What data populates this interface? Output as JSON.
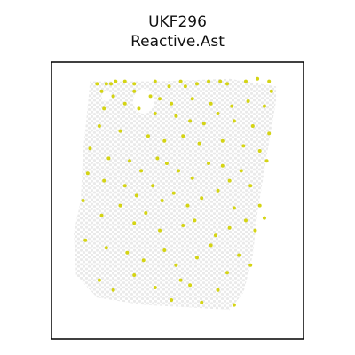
{
  "chart_data": {
    "type": "scatter",
    "title": "UKF296",
    "subtitle": "Reactive.Ast",
    "xlabel": "",
    "ylabel": "",
    "axes_ticks": false,
    "grid": false,
    "legend": "none",
    "colors": {
      "tissue": "#ebebeb",
      "highlight": "#d4d414",
      "frame": "#000000"
    },
    "tissue_outline": [
      [
        0.12,
        0.02
      ],
      [
        0.4,
        0.02
      ],
      [
        0.72,
        0.01
      ],
      [
        0.92,
        0.04
      ],
      [
        0.92,
        0.1
      ],
      [
        0.88,
        0.32
      ],
      [
        0.84,
        0.55
      ],
      [
        0.82,
        0.72
      ],
      [
        0.78,
        0.87
      ],
      [
        0.72,
        0.94
      ],
      [
        0.55,
        0.93
      ],
      [
        0.35,
        0.92
      ],
      [
        0.15,
        0.89
      ],
      [
        0.06,
        0.8
      ],
      [
        0.05,
        0.63
      ],
      [
        0.08,
        0.5
      ],
      [
        0.09,
        0.3
      ],
      [
        0.11,
        0.12
      ]
    ],
    "tissue_holes": [
      {
        "cx": 0.35,
        "cy": 0.1,
        "rx": 0.045,
        "ry": 0.05
      },
      {
        "cx": 0.19,
        "cy": 0.08,
        "rx": 0.02,
        "ry": 0.02
      }
    ],
    "highlight_points": [
      [
        0.15,
        0.03
      ],
      [
        0.19,
        0.03
      ],
      [
        0.21,
        0.03
      ],
      [
        0.23,
        0.02
      ],
      [
        0.27,
        0.02
      ],
      [
        0.31,
        0.03
      ],
      [
        0.4,
        0.02
      ],
      [
        0.46,
        0.04
      ],
      [
        0.51,
        0.02
      ],
      [
        0.53,
        0.04
      ],
      [
        0.58,
        0.03
      ],
      [
        0.63,
        0.02
      ],
      [
        0.68,
        0.02
      ],
      [
        0.71,
        0.03
      ],
      [
        0.79,
        0.02
      ],
      [
        0.84,
        0.01
      ],
      [
        0.89,
        0.02
      ],
      [
        0.9,
        0.06
      ],
      [
        0.17,
        0.06
      ],
      [
        0.22,
        0.08
      ],
      [
        0.31,
        0.06
      ],
      [
        0.38,
        0.08
      ],
      [
        0.42,
        0.09
      ],
      [
        0.47,
        0.11
      ],
      [
        0.56,
        0.09
      ],
      [
        0.64,
        0.11
      ],
      [
        0.73,
        0.12
      ],
      [
        0.8,
        0.1
      ],
      [
        0.87,
        0.12
      ],
      [
        0.18,
        0.13
      ],
      [
        0.27,
        0.11
      ],
      [
        0.33,
        0.13
      ],
      [
        0.4,
        0.15
      ],
      [
        0.49,
        0.16
      ],
      [
        0.55,
        0.18
      ],
      [
        0.61,
        0.19
      ],
      [
        0.67,
        0.15
      ],
      [
        0.74,
        0.18
      ],
      [
        0.82,
        0.2
      ],
      [
        0.89,
        0.23
      ],
      [
        0.16,
        0.2
      ],
      [
        0.25,
        0.22
      ],
      [
        0.37,
        0.24
      ],
      [
        0.44,
        0.26
      ],
      [
        0.52,
        0.24
      ],
      [
        0.59,
        0.27
      ],
      [
        0.69,
        0.26
      ],
      [
        0.78,
        0.28
      ],
      [
        0.85,
        0.3
      ],
      [
        0.12,
        0.29
      ],
      [
        0.2,
        0.33
      ],
      [
        0.29,
        0.34
      ],
      [
        0.34,
        0.38
      ],
      [
        0.41,
        0.33
      ],
      [
        0.45,
        0.35
      ],
      [
        0.5,
        0.38
      ],
      [
        0.56,
        0.41
      ],
      [
        0.63,
        0.35
      ],
      [
        0.69,
        0.36
      ],
      [
        0.72,
        0.42
      ],
      [
        0.77,
        0.38
      ],
      [
        0.81,
        0.44
      ],
      [
        0.88,
        0.34
      ],
      [
        0.11,
        0.39
      ],
      [
        0.18,
        0.42
      ],
      [
        0.27,
        0.44
      ],
      [
        0.32,
        0.48
      ],
      [
        0.39,
        0.44
      ],
      [
        0.43,
        0.5
      ],
      [
        0.48,
        0.47
      ],
      [
        0.54,
        0.52
      ],
      [
        0.6,
        0.49
      ],
      [
        0.67,
        0.46
      ],
      [
        0.74,
        0.53
      ],
      [
        0.79,
        0.58
      ],
      [
        0.85,
        0.52
      ],
      [
        0.09,
        0.5
      ],
      [
        0.17,
        0.56
      ],
      [
        0.25,
        0.52
      ],
      [
        0.31,
        0.59
      ],
      [
        0.36,
        0.55
      ],
      [
        0.42,
        0.62
      ],
      [
        0.52,
        0.6
      ],
      [
        0.57,
        0.58
      ],
      [
        0.66,
        0.64
      ],
      [
        0.72,
        0.61
      ],
      [
        0.83,
        0.62
      ],
      [
        0.87,
        0.57
      ],
      [
        0.1,
        0.66
      ],
      [
        0.19,
        0.69
      ],
      [
        0.28,
        0.71
      ],
      [
        0.35,
        0.74
      ],
      [
        0.44,
        0.7
      ],
      [
        0.49,
        0.76
      ],
      [
        0.58,
        0.73
      ],
      [
        0.64,
        0.68
      ],
      [
        0.71,
        0.79
      ],
      [
        0.76,
        0.72
      ],
      [
        0.81,
        0.76
      ],
      [
        0.16,
        0.82
      ],
      [
        0.22,
        0.86
      ],
      [
        0.31,
        0.8
      ],
      [
        0.4,
        0.85
      ],
      [
        0.47,
        0.9
      ],
      [
        0.55,
        0.84
      ],
      [
        0.6,
        0.91
      ],
      [
        0.67,
        0.86
      ],
      [
        0.74,
        0.92
      ],
      [
        0.51,
        0.82
      ]
    ]
  }
}
